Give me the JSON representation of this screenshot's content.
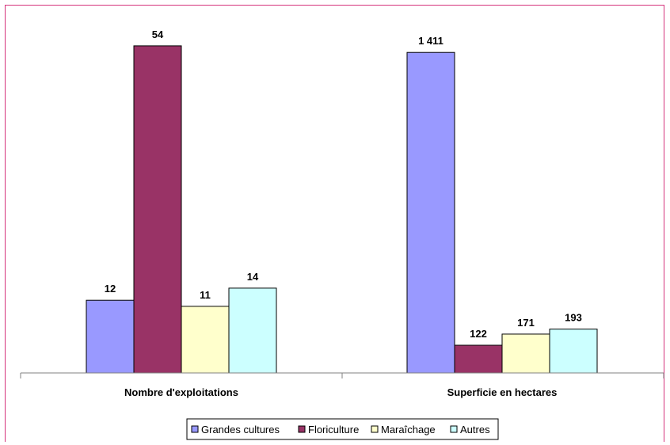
{
  "chart_data": {
    "type": "bar",
    "title": "",
    "xlabel": "",
    "ylabel": "",
    "grid": false,
    "legend": "bottom",
    "groups": [
      {
        "label": "Nombre d'exploitations",
        "values": [
          12,
          54,
          11,
          14
        ],
        "value_labels": [
          "12",
          "54",
          "11",
          "14"
        ],
        "ylim": [
          0,
          60
        ]
      },
      {
        "label": "Superficie en hectares",
        "values": [
          1411,
          122,
          171,
          193
        ],
        "value_labels": [
          "1 411",
          "122",
          "171",
          "193"
        ],
        "ylim": [
          0,
          1600
        ]
      }
    ],
    "series": [
      {
        "name": "Grandes cultures",
        "color": "#9999ff"
      },
      {
        "name": "Floriculture",
        "color": "#993366"
      },
      {
        "name": "Maraîchage",
        "color": "#ffffcc"
      },
      {
        "name": "Autres",
        "color": "#ccffff"
      }
    ]
  },
  "colors": {
    "frame": "#d4327b",
    "axis": "#808080",
    "bar_border": "#000000"
  }
}
